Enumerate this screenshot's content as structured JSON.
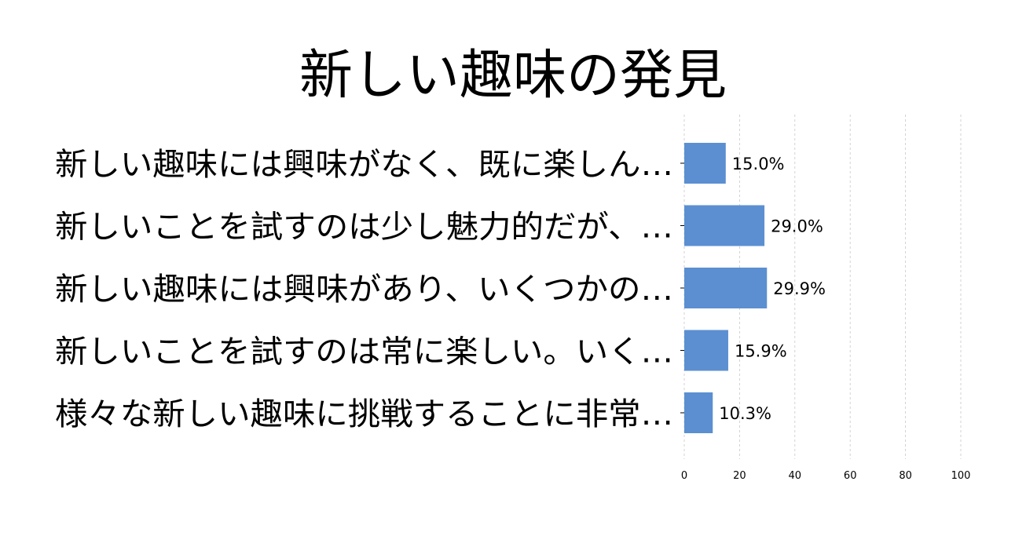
{
  "chart_data": {
    "type": "bar",
    "orientation": "horizontal",
    "title": "新しい趣味の発見",
    "categories": [
      "新しい趣味には興味がなく、既に楽しん…",
      "新しいことを試すのは少し魅力的だが、…",
      "新しい趣味には興味があり、いくつかの…",
      "新しいことを試すのは常に楽しい。いく…",
      "様々な新しい趣味に挑戦することに非常…"
    ],
    "values": [
      15.0,
      29.0,
      29.9,
      15.9,
      10.3
    ],
    "value_labels": [
      "15.0%",
      "29.0%",
      "29.9%",
      "15.9%",
      "10.3%"
    ],
    "xlim": [
      0,
      100
    ],
    "x_ticks": [
      "0",
      "20",
      "40",
      "60",
      "80",
      "100"
    ],
    "xlabel": "",
    "ylabel": "",
    "grid": true,
    "legend": "none",
    "bar_color": "#5b8fd1"
  }
}
